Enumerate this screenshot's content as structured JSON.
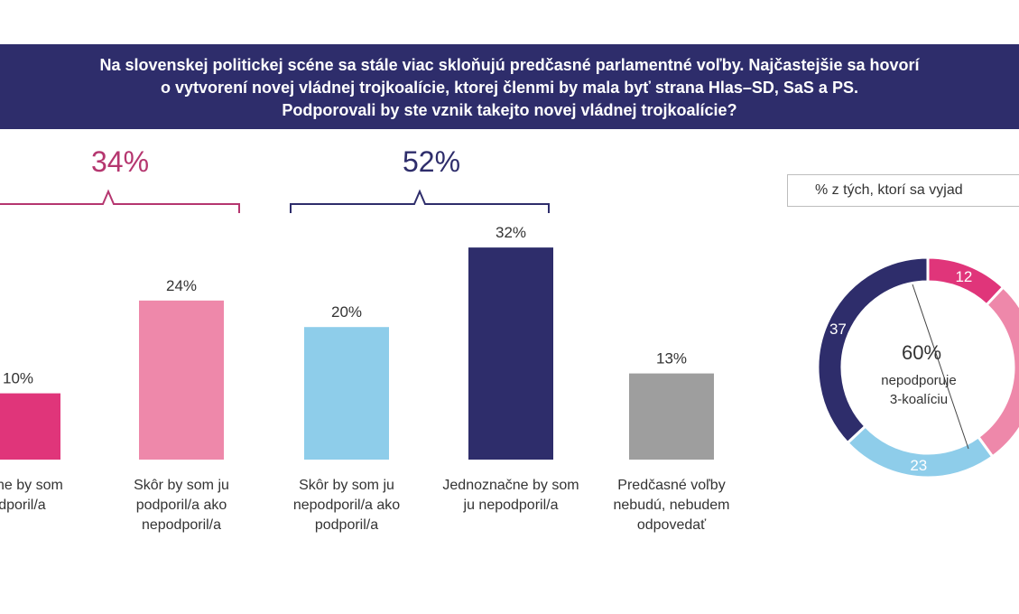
{
  "header": {
    "title_lines": [
      "Na slovenskej politickej scéne sa stále viac skloňujú predčasné parlamentné voľby. Najčastejšie sa hovorí",
      "o vytvorení novej vládnej trojkoalície, ktorej členmi by mala byť strana Hlas–SD, SaS a PS.",
      "Podporovali by ste vznik takejto novej vládnej trojkoalície?"
    ]
  },
  "brackets": [
    {
      "label": "34%",
      "color": "#b5366f"
    },
    {
      "label": "52%",
      "color": "#2e2d6b"
    }
  ],
  "chart_data": [
    {
      "type": "bar",
      "categories": [
        [
          "načne by som",
          "odporil/a"
        ],
        [
          "Skôr by som ju",
          "podporil/a ako",
          "nepodporil/a"
        ],
        [
          "Skôr by som ju",
          "nepodporil/a ako",
          "podporil/a"
        ],
        [
          "Jednoznačne by som",
          "ju nepodporil/a"
        ],
        [
          "Predčasné  voľby",
          "nebudú, nebudem",
          "odpovedať"
        ]
      ],
      "values": [
        10,
        24,
        20,
        32,
        13
      ],
      "value_labels": [
        "10%",
        "24%",
        "20%",
        "32%",
        "13%"
      ],
      "colors": [
        "#e0357a",
        "#ee88aa",
        "#8ecdea",
        "#2e2d6b",
        "#9e9e9e"
      ],
      "ylim": [
        0,
        32
      ]
    },
    {
      "type": "pie",
      "style": "donut",
      "legend_text": "% z tých, ktorí sa vyjad",
      "slices": [
        {
          "value": 12,
          "label": "12",
          "color": "#e0357a"
        },
        {
          "value": 28,
          "label": "",
          "color": "#ee88aa"
        },
        {
          "value": 23,
          "label": "23",
          "color": "#8ecdea"
        },
        {
          "value": 37,
          "label": "37",
          "color": "#2e2d6b"
        }
      ],
      "center_value": "60%",
      "center_text": [
        "nepodporuje",
        "3-koalíciu"
      ]
    }
  ]
}
